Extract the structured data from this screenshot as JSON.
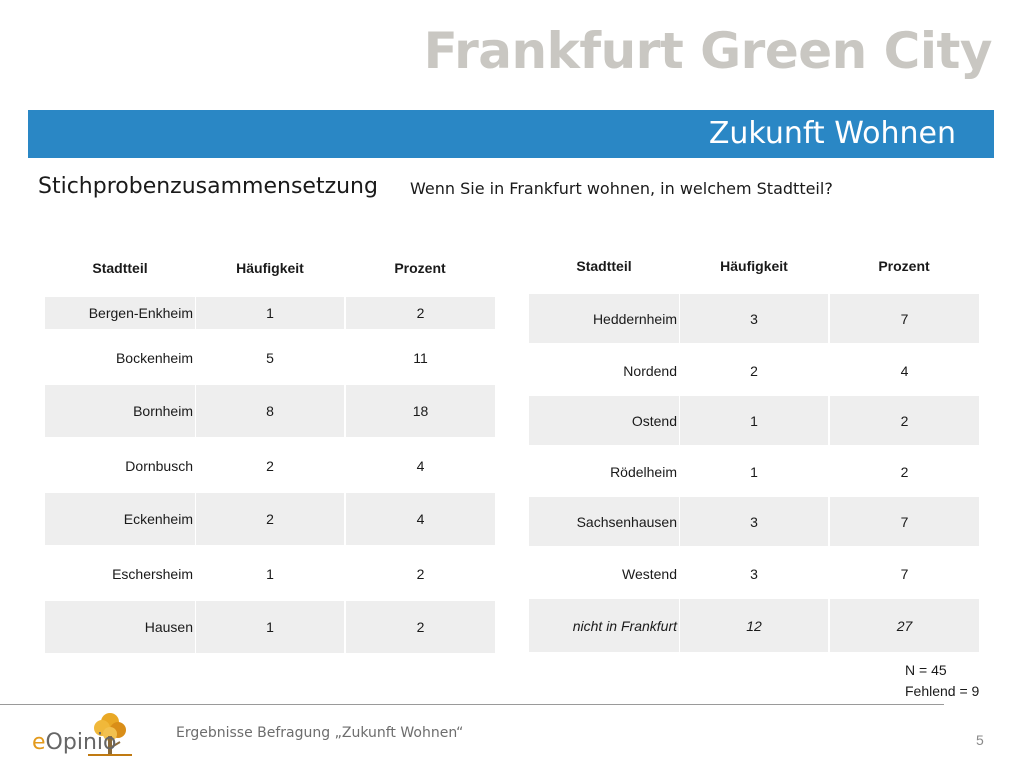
{
  "brand": "Frankfurt Green City",
  "section_title": "Zukunft Wohnen",
  "subtitle_left": "Stichprobenzusammensetzung",
  "subtitle_right": "Wenn Sie in Frankfurt wohnen, in welchem Stadtteil?",
  "columns": [
    "Stadtteil",
    "Häufigkeit",
    "Prozent"
  ],
  "table_left": [
    {
      "name": "Bergen-Enkheim",
      "freq": "1",
      "pct": "2"
    },
    {
      "name": "Bockenheim",
      "freq": "5",
      "pct": "11"
    },
    {
      "name": "Bornheim",
      "freq": "8",
      "pct": "18"
    },
    {
      "name": "Dornbusch",
      "freq": "2",
      "pct": "4"
    },
    {
      "name": "Eckenheim",
      "freq": "2",
      "pct": "4"
    },
    {
      "name": "Eschersheim",
      "freq": "1",
      "pct": "2"
    },
    {
      "name": "Hausen",
      "freq": "1",
      "pct": "2"
    }
  ],
  "table_right": [
    {
      "name": "Heddernheim",
      "freq": "3",
      "pct": "7"
    },
    {
      "name": "Nordend",
      "freq": "2",
      "pct": "4"
    },
    {
      "name": "Ostend",
      "freq": "1",
      "pct": "2"
    },
    {
      "name": "Rödelheim",
      "freq": "1",
      "pct": "2"
    },
    {
      "name": "Sachsenhausen",
      "freq": "3",
      "pct": "7"
    },
    {
      "name": "Westend",
      "freq": "3",
      "pct": "7"
    },
    {
      "name": "nicht in Frankfurt",
      "freq": "12",
      "pct": "27"
    }
  ],
  "notes": {
    "n": "N = 45",
    "missing": "Fehlend = 9"
  },
  "logo_text": {
    "e": "e",
    "rest": "Opinio"
  },
  "footer_text": "Ergebnisse Befragung „Zukunft Wohnen“",
  "page_number": "5",
  "colors": {
    "accent": "#2a87c5",
    "brand_gray": "#c9c7c2",
    "logo_orange": "#e39a1c",
    "row_shade": "#eeeeee"
  }
}
